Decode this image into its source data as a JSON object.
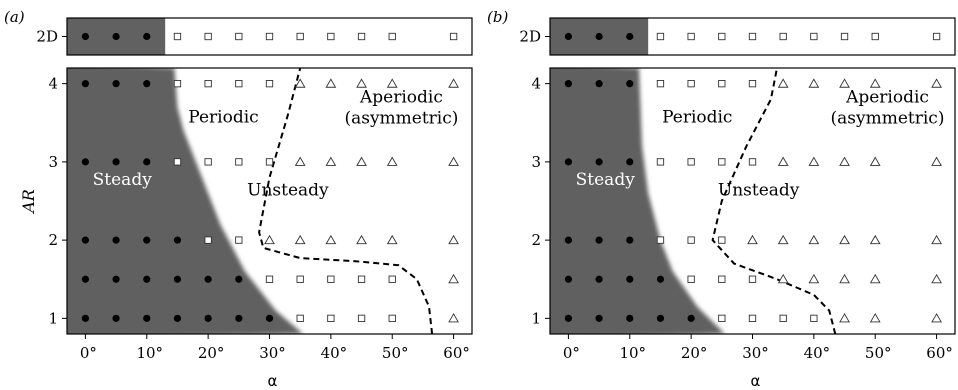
{
  "colors": {
    "steady_fill": "#616161",
    "boundary_dash": "#000000",
    "marker": "#333333"
  },
  "chart_data": [
    {
      "type": "scatter",
      "panel_label": "(a)",
      "xlabel": "α",
      "ylabel": "AR",
      "x_ticks": [
        0,
        10,
        20,
        30,
        40,
        50,
        60
      ],
      "x_tick_labels": [
        "0°",
        "10°",
        "20°",
        "30°",
        "40°",
        "50°",
        "60°"
      ],
      "y_ticks": [
        1,
        2,
        3,
        4
      ],
      "y_tick_labels": [
        "1",
        "2",
        "3",
        "4"
      ],
      "top_row_label": "2D",
      "xlim": [
        -3,
        63
      ],
      "ylim": [
        0.8,
        4.2
      ],
      "regions": {
        "steady": "Steady",
        "periodic": "Periodic",
        "unsteady": "Unsteady",
        "aperiodic": "Aperiodic\n(asymmetric)"
      },
      "steady_boundary": [
        [
          35.5,
          0.8
        ],
        [
          31,
          1.1
        ],
        [
          26,
          1.6
        ],
        [
          22,
          2.2
        ],
        [
          19,
          2.8
        ],
        [
          16,
          3.4
        ],
        [
          15,
          3.7
        ],
        [
          14.5,
          4.2
        ]
      ],
      "unsteady_boundary": [
        [
          56.5,
          0.8
        ],
        [
          56,
          1.15
        ],
        [
          54,
          1.5
        ],
        [
          51,
          1.68
        ],
        [
          44,
          1.73
        ],
        [
          35,
          1.77
        ],
        [
          29,
          1.9
        ],
        [
          28.3,
          2.1
        ],
        [
          30,
          2.8
        ],
        [
          33,
          3.6
        ],
        [
          35,
          4.2
        ]
      ],
      "two_d": {
        "steady": [
          0,
          5,
          10
        ],
        "periodic": [
          15,
          20,
          25,
          30,
          35,
          40,
          45,
          50,
          60
        ],
        "aperiodic": []
      },
      "rows": [
        {
          "ar": 1,
          "steady": [
            0,
            5,
            10,
            15,
            20,
            25,
            30
          ],
          "periodic": [
            35,
            40,
            45,
            50
          ],
          "aperiodic": [
            60
          ]
        },
        {
          "ar": 1.5,
          "steady": [
            0,
            5,
            10,
            15,
            20,
            25
          ],
          "periodic": [
            30,
            35,
            40,
            45,
            50
          ],
          "aperiodic": [
            60
          ]
        },
        {
          "ar": 2,
          "steady": [
            0,
            5,
            10,
            15
          ],
          "periodic": [
            20,
            25
          ],
          "aperiodic": [
            30,
            35,
            40,
            45,
            50,
            60
          ]
        },
        {
          "ar": 3,
          "steady": [
            0,
            5,
            10
          ],
          "periodic": [
            15,
            20,
            25,
            30
          ],
          "aperiodic": [
            35,
            40,
            45,
            50,
            60
          ]
        },
        {
          "ar": 4,
          "steady": [
            0,
            5,
            10
          ],
          "periodic": [
            15,
            20,
            25,
            30
          ],
          "aperiodic": [
            35,
            40,
            45,
            50,
            60
          ]
        }
      ]
    },
    {
      "type": "scatter",
      "panel_label": "(b)",
      "xlabel": "α",
      "ylabel": "",
      "x_ticks": [
        0,
        10,
        20,
        30,
        40,
        50,
        60
      ],
      "x_tick_labels": [
        "0°",
        "10°",
        "20°",
        "30°",
        "40°",
        "50°",
        "60°"
      ],
      "y_ticks": [
        1,
        2,
        3,
        4
      ],
      "y_tick_labels": [
        "1",
        "2",
        "3",
        "4"
      ],
      "top_row_label": "2D",
      "xlim": [
        -3,
        63
      ],
      "ylim": [
        0.8,
        4.2
      ],
      "regions": {
        "steady": "Steady",
        "periodic": "Periodic",
        "unsteady": "Unsteady",
        "aperiodic": "Aperiodic\n(asymmetric)"
      },
      "steady_boundary": [
        [
          25.5,
          0.8
        ],
        [
          21,
          1.15
        ],
        [
          17,
          1.6
        ],
        [
          15,
          2.0
        ],
        [
          13,
          2.6
        ],
        [
          12,
          3.2
        ],
        [
          11.5,
          4.2
        ]
      ],
      "unsteady_boundary": [
        [
          43.5,
          0.8
        ],
        [
          42.5,
          1.1
        ],
        [
          40,
          1.3
        ],
        [
          34,
          1.5
        ],
        [
          27,
          1.7
        ],
        [
          23.5,
          2.0
        ],
        [
          25,
          2.5
        ],
        [
          29,
          3.2
        ],
        [
          33,
          3.8
        ],
        [
          34,
          4.2
        ]
      ],
      "two_d": {
        "steady": [
          0,
          5,
          10
        ],
        "periodic": [
          15,
          20,
          25,
          30,
          35,
          40,
          45,
          50,
          60
        ],
        "aperiodic": []
      },
      "rows": [
        {
          "ar": 1,
          "steady": [
            0,
            5,
            10,
            15,
            20
          ],
          "periodic": [
            25,
            30,
            35,
            40
          ],
          "aperiodic": [
            45,
            50,
            60
          ]
        },
        {
          "ar": 1.5,
          "steady": [
            0,
            5,
            10,
            15
          ],
          "periodic": [
            20,
            25,
            30
          ],
          "aperiodic": [
            35,
            40,
            45,
            50,
            60
          ]
        },
        {
          "ar": 2,
          "steady": [
            0,
            5,
            10
          ],
          "periodic": [
            15,
            20,
            25
          ],
          "aperiodic": [
            30,
            35,
            40,
            45,
            50,
            60
          ]
        },
        {
          "ar": 3,
          "steady": [
            0,
            5,
            10
          ],
          "periodic": [
            15,
            20,
            25,
            30
          ],
          "aperiodic": [
            35,
            40,
            45,
            50,
            60
          ]
        },
        {
          "ar": 4,
          "steady": [
            0,
            5,
            10
          ],
          "periodic": [
            15,
            20,
            25,
            30
          ],
          "aperiodic": [
            35,
            40,
            45,
            50,
            60
          ]
        }
      ]
    }
  ]
}
